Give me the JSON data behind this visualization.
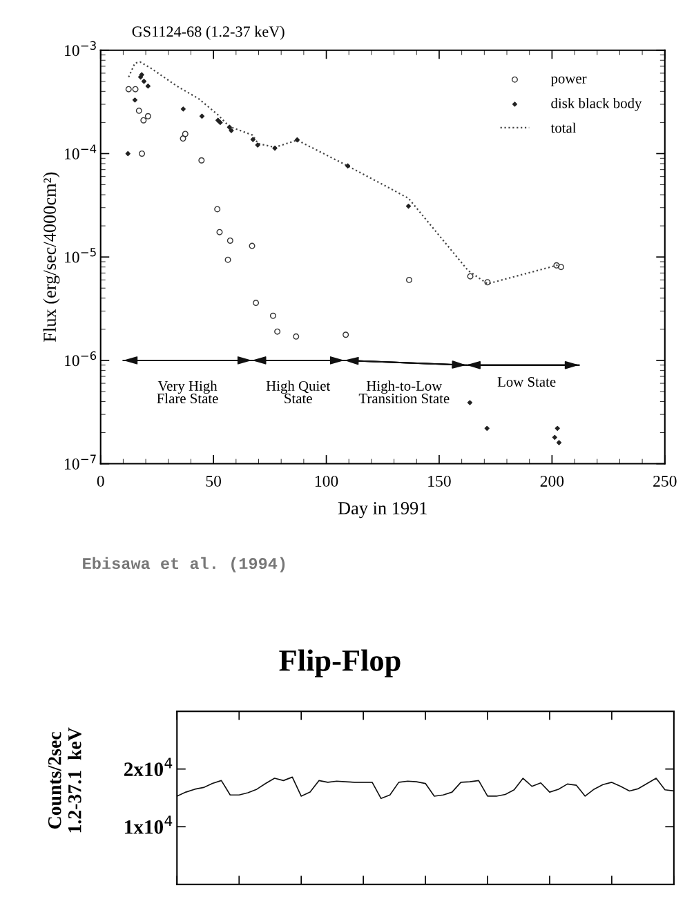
{
  "chart_data": [
    {
      "type": "scatter",
      "title": "GS1124-68 (1.2-37 keV)",
      "xlabel": "Day in 1991",
      "ylabel": "Flux (erg/sec/4000cm²)",
      "log": "y",
      "xlim": [
        0,
        250
      ],
      "ylim": [
        1e-07,
        0.001
      ],
      "xticks": [
        0,
        50,
        100,
        150,
        200,
        250
      ],
      "yticks": [
        {
          "value": 1e-07,
          "label": "10$^{−7}$"
        },
        {
          "value": 1e-06,
          "label": "10$^{−6}$"
        },
        {
          "value": 1e-05,
          "label": "10$^{−5}$"
        },
        {
          "value": 0.0001,
          "label": "10$^{−4}$"
        },
        {
          "value": 0.001,
          "label": "10$^{−3}$"
        }
      ],
      "legend": "top right",
      "series": [
        {
          "name": "power",
          "type": "scatter",
          "marker": "circle",
          "color": "#333333",
          "x": [
            12.4,
            15.4,
            17.0,
            19.0,
            21.0,
            18.3,
            36.5,
            37.5,
            44.7,
            51.7,
            52.7,
            57.4,
            56.4,
            67.1,
            68.8,
            76.4,
            78.3,
            86.6,
            108.6,
            136.7,
            163.8,
            171.4,
            202,
            204
          ],
          "values": [
            0.00042,
            0.00042,
            0.00026,
            0.00021,
            0.00023,
            0.0001,
            0.00014,
            0.000155,
            8.6e-05,
            2.9e-05,
            1.74e-05,
            1.44e-05,
            9.4e-06,
            1.28e-05,
            3.6e-06,
            2.7e-06,
            1.9e-06,
            1.7e-06,
            1.77e-06,
            6e-06,
            6.5e-06,
            5.7e-06,
            8.3e-06,
            8e-06
          ]
        },
        {
          "name": "disk black body",
          "type": "scatter",
          "marker": "diamond",
          "color": "#222222",
          "x": [
            12.1,
            15.2,
            17.7,
            18.2,
            19.2,
            21.0,
            36.6,
            44.9,
            52.0,
            53.0,
            57.1,
            57.9,
            67.5,
            69.6,
            77.2,
            87.1,
            109.5,
            136.4,
            163.6,
            171.2,
            202.4,
            201.2,
            203.1
          ],
          "values": [
            0.0001,
            0.00033,
            0.00055,
            0.00058,
            0.0005,
            0.00045,
            0.00027,
            0.00023,
            0.00021,
            0.0002,
            0.00018,
            0.000167,
            0.000137,
            0.000121,
            0.000113,
            0.000136,
            7.6e-05,
            3.1e-05,
            3.9e-07,
            2.2e-07,
            2.2e-07,
            1.8e-07,
            1.6e-07
          ]
        },
        {
          "type": "line",
          "color": "#111111",
          "x": [
            10,
            67,
            108,
            162,
            212
          ],
          "values": [
            1e-06,
            1e-06,
            1e-06,
            9e-07,
            9e-07
          ]
        },
        {
          "name": "total",
          "type": "line",
          "line_style": "dotted",
          "color": "#444444",
          "x": [
            12.4,
            15.2,
            17.5,
            22.3,
            33.8,
            43.4,
            52.0,
            57.0,
            67.3,
            69.8,
            77.2,
            87.1,
            109.5,
            136.4,
            162.8,
            171.4,
            203
          ],
          "values": [
            0.00055,
            0.00075,
            0.00077,
            0.00067,
            0.00045,
            0.00034,
            0.000237,
            0.000183,
            0.000151,
            0.000125,
            0.000115,
            0.000135,
            7.6e-05,
            3.7e-05,
            7.4e-06,
            5.5e-06,
            8.4e-06
          ]
        }
      ],
      "annotations": [
        "Very High\nFlare State",
        "High Quiet\nState",
        "High-to-Low\nTransition State",
        "Low State",
        "Ebisawa et al. (1994)"
      ]
    },
    {
      "type": "line",
      "title": "Flip-Flop",
      "ylabel": "Counts/2sec\n1.2-37.1  keV",
      "color": "#111111",
      "categories": [
        null,
        null,
        null,
        null,
        null,
        null,
        null,
        null,
        null,
        null,
        null,
        null,
        null,
        null,
        null,
        null,
        null,
        null,
        null,
        null,
        null,
        null,
        null,
        null,
        null,
        null,
        null,
        null,
        null,
        null,
        null,
        null,
        null,
        null,
        null,
        null,
        null,
        null,
        null,
        null,
        null,
        null,
        null,
        null,
        null,
        null,
        null,
        null,
        null,
        null,
        null,
        null,
        null,
        null,
        null,
        null,
        null
      ],
      "values": [
        15300,
        16000,
        16500,
        16800,
        17500,
        18000,
        15500,
        15500,
        15900,
        16500,
        17500,
        18400,
        18000,
        18600,
        15300,
        16000,
        18000,
        17700,
        17900,
        17800,
        17700,
        17700,
        17700,
        14900,
        15500,
        17700,
        17900,
        17800,
        17500,
        15300,
        15500,
        16000,
        17700,
        17800,
        18000,
        15300,
        15300,
        15600,
        16400,
        18400,
        17000,
        17600,
        16000,
        16500,
        17400,
        17200,
        15300,
        16500,
        17300,
        17700,
        17000,
        16200,
        16600,
        17500,
        18400,
        16400,
        16200
      ],
      "ylim": [
        0,
        30000
      ],
      "yticks": [
        {
          "value": 10000,
          "label": "1x10$^{4}$"
        },
        {
          "value": 20000,
          "label": "2x10$^{4}$"
        }
      ],
      "tick_labels": "y"
    }
  ]
}
